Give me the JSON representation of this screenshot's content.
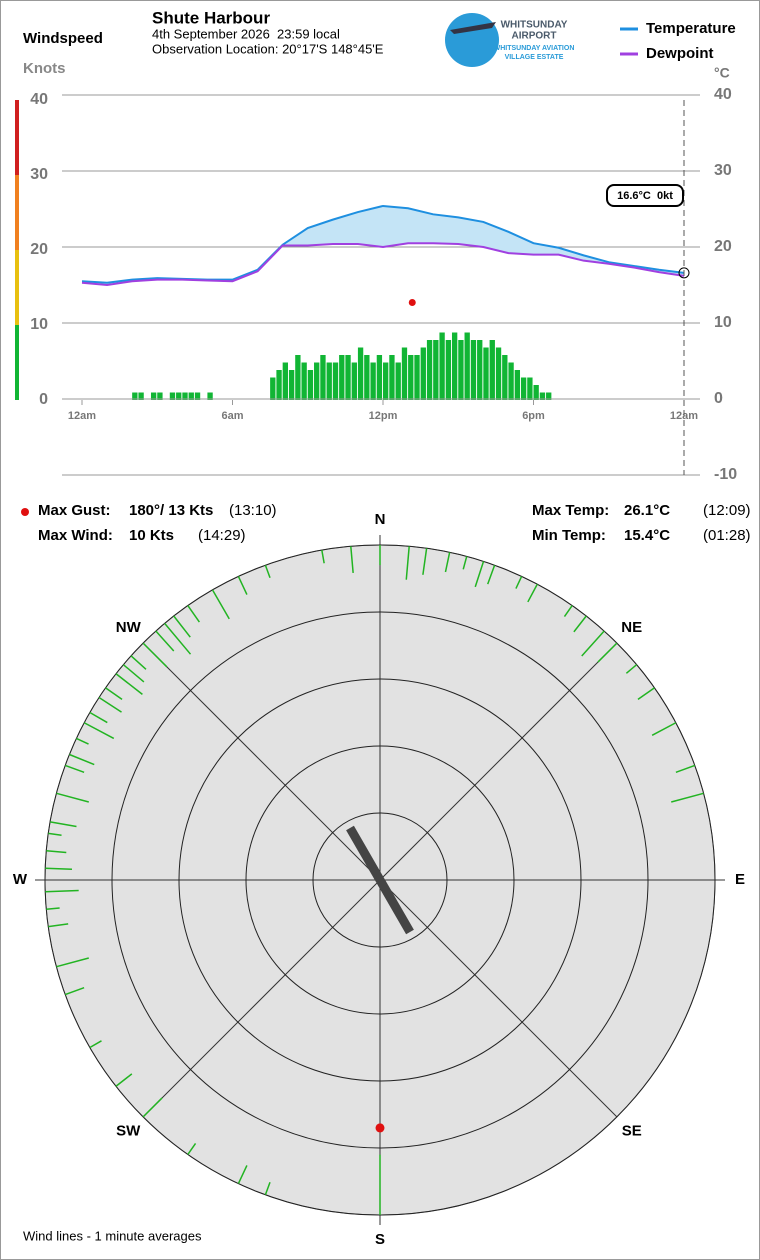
{
  "chart_data": [
    {
      "type": "bar",
      "title": "Windspeed",
      "ylabel": "Knots",
      "color": "#11b534",
      "ylim": [
        0,
        40
      ],
      "yticks": [
        0,
        10,
        20,
        30,
        40
      ],
      "xlim": [
        0,
        24
      ],
      "xticks": [
        {
          "value": 0,
          "label": "12am"
        },
        {
          "value": 6,
          "label": "6am"
        },
        {
          "value": 12,
          "label": "12pm"
        },
        {
          "value": 18,
          "label": "6pm"
        },
        {
          "value": 24,
          "label": "12am"
        }
      ],
      "x": [
        0,
        0.25,
        0.5,
        0.75,
        1,
        1.25,
        1.5,
        1.75,
        2,
        2.25,
        2.5,
        2.75,
        3,
        3.25,
        3.5,
        3.75,
        4,
        4.25,
        4.5,
        4.75,
        5,
        5.25,
        5.5,
        5.75,
        6,
        6.25,
        6.5,
        6.75,
        7,
        7.25,
        7.5,
        7.75,
        8,
        8.25,
        8.5,
        8.75,
        9,
        9.25,
        9.5,
        9.75,
        10,
        10.25,
        10.5,
        10.75,
        11,
        11.25,
        11.5,
        11.75,
        12,
        12.25,
        12.5,
        12.75,
        13,
        13.25,
        13.5,
        13.75,
        14,
        14.25,
        14.5,
        14.75,
        15,
        15.25,
        15.5,
        15.75,
        16,
        16.25,
        16.5,
        16.75,
        17,
        17.25,
        17.5,
        17.75,
        18,
        18.25,
        18.5,
        18.75,
        19,
        19.25,
        19.5,
        19.75,
        20,
        20.25,
        20.5,
        20.75,
        21,
        21.25,
        21.5,
        21.75,
        22,
        22.25,
        22.5,
        22.75,
        23,
        23.25,
        23.5,
        23.75
      ],
      "values": [
        0,
        0,
        0,
        0,
        0,
        0,
        0,
        0,
        1,
        1,
        0,
        1,
        1,
        0,
        1,
        1,
        1,
        1,
        1,
        0,
        1,
        0,
        0,
        0,
        0,
        0,
        0,
        0,
        0,
        0,
        3,
        4,
        5,
        4,
        6,
        5,
        4,
        5,
        6,
        5,
        5,
        6,
        6,
        5,
        7,
        6,
        5,
        6,
        5,
        6,
        5,
        7,
        6,
        6,
        7,
        8,
        8,
        9,
        8,
        9,
        8,
        9,
        8,
        8,
        7,
        8,
        7,
        6,
        5,
        4,
        3,
        3,
        2,
        1,
        1,
        0,
        0,
        0,
        0,
        0,
        0,
        0,
        0,
        0,
        0,
        0,
        0,
        0,
        0,
        0,
        0,
        0,
        0,
        0,
        0,
        0
      ],
      "gust": {
        "x": 13.1667,
        "value": 13,
        "color": "#e01010"
      }
    },
    {
      "type": "line",
      "title": "Shute Harbour",
      "subtitle": "4th September 2026  23:59 local",
      "location": "Observation Location: 20°17'S 148°45'E",
      "ylabel": "°C",
      "ylim": [
        -10,
        40
      ],
      "yticks": [
        -10,
        0,
        10,
        20,
        30,
        40
      ],
      "xlim": [
        0,
        24
      ],
      "grid": true,
      "current_label": "16.6°C  0kt",
      "fill_color": "#c4e4f6",
      "x": [
        0,
        1,
        2,
        3,
        4,
        5,
        6,
        7,
        8,
        9,
        10,
        11,
        12,
        13,
        14,
        15,
        16,
        17,
        18,
        19,
        20,
        21,
        22,
        23,
        24
      ],
      "series": [
        {
          "name": "Temperature",
          "color": "#1e8fe0",
          "axis": "y2",
          "values": [
            15.5,
            15.3,
            15.7,
            15.9,
            15.8,
            15.7,
            15.7,
            17.0,
            20.3,
            22.5,
            23.6,
            24.6,
            25.4,
            25.1,
            24.3,
            23.9,
            23.3,
            22.0,
            20.5,
            19.9,
            18.9,
            18.0,
            17.5,
            17.0,
            16.6
          ]
        },
        {
          "name": "Dewpoint",
          "color": "#a040e0",
          "axis": "y2",
          "values": [
            15.3,
            15.0,
            15.5,
            15.7,
            15.7,
            15.6,
            15.5,
            16.8,
            20.2,
            20.2,
            20.4,
            20.4,
            20.0,
            20.5,
            20.5,
            20.4,
            20.0,
            19.2,
            19.0,
            19.0,
            18.2,
            17.8,
            17.3,
            16.7,
            16.2
          ]
        }
      ]
    },
    {
      "type": "polar",
      "color": "#22b422",
      "note": "Wind lines - 1 minute averages",
      "rlim": [
        0,
        50
      ],
      "rticks": [
        0,
        10,
        20,
        30,
        40
      ],
      "compass": [
        {
          "value": 0,
          "label": "N"
        },
        {
          "value": 45,
          "label": "NE"
        },
        {
          "value": 90,
          "label": "E"
        },
        {
          "value": 135,
          "label": "SE"
        },
        {
          "value": 180,
          "label": "S"
        },
        {
          "value": 225,
          "label": "SW"
        },
        {
          "value": 270,
          "label": "W"
        },
        {
          "value": 315,
          "label": "NW"
        }
      ],
      "directions": [
        350,
        355,
        0,
        5,
        8,
        12,
        15,
        18,
        20,
        25,
        28,
        35,
        38,
        42,
        45,
        50,
        55,
        62,
        70,
        75,
        285,
        290,
        292,
        295,
        298,
        300,
        303,
        305,
        308,
        310,
        312,
        315,
        318,
        320,
        322,
        325,
        330,
        335,
        340,
        262,
        265,
        268,
        272,
        275,
        278,
        280,
        255,
        250,
        240,
        232,
        225,
        215,
        205,
        200,
        180
      ],
      "speeds": [
        2,
        4,
        3,
        5,
        4,
        3,
        2,
        4,
        3,
        2,
        3,
        2,
        3,
        5,
        4,
        2,
        3,
        4,
        3,
        5,
        5,
        3,
        4,
        2,
        5,
        3,
        4,
        3,
        5,
        4,
        3,
        5,
        4,
        6,
        4,
        3,
        5,
        3,
        2,
        3,
        2,
        5,
        4,
        3,
        2,
        4,
        5,
        3,
        2,
        3,
        4,
        2,
        3,
        2,
        9
      ],
      "mean_direction": 330,
      "gust": {
        "direction": 180,
        "speed": 13
      }
    }
  ],
  "logo": {
    "line1": "WHITSUNDAY",
    "line2": "AIRPORT",
    "line3": "WHITSUNDAY AVIATION",
    "line4": "VILLAGE ESTATE"
  },
  "stats": {
    "max_gust_label": "Max Gust:",
    "max_gust_value": "180°/ 13 Kts",
    "max_gust_time": "(13:10)",
    "max_wind_label": "Max Wind:",
    "max_wind_value": "10 Kts",
    "max_wind_time": "(14:29)",
    "max_temp_label": "Max Temp:",
    "max_temp_value": "26.1°C",
    "max_temp_time": "(12:09)",
    "min_temp_label": "Min Temp:",
    "min_temp_value": "15.4°C",
    "min_temp_time": "(01:28)"
  }
}
